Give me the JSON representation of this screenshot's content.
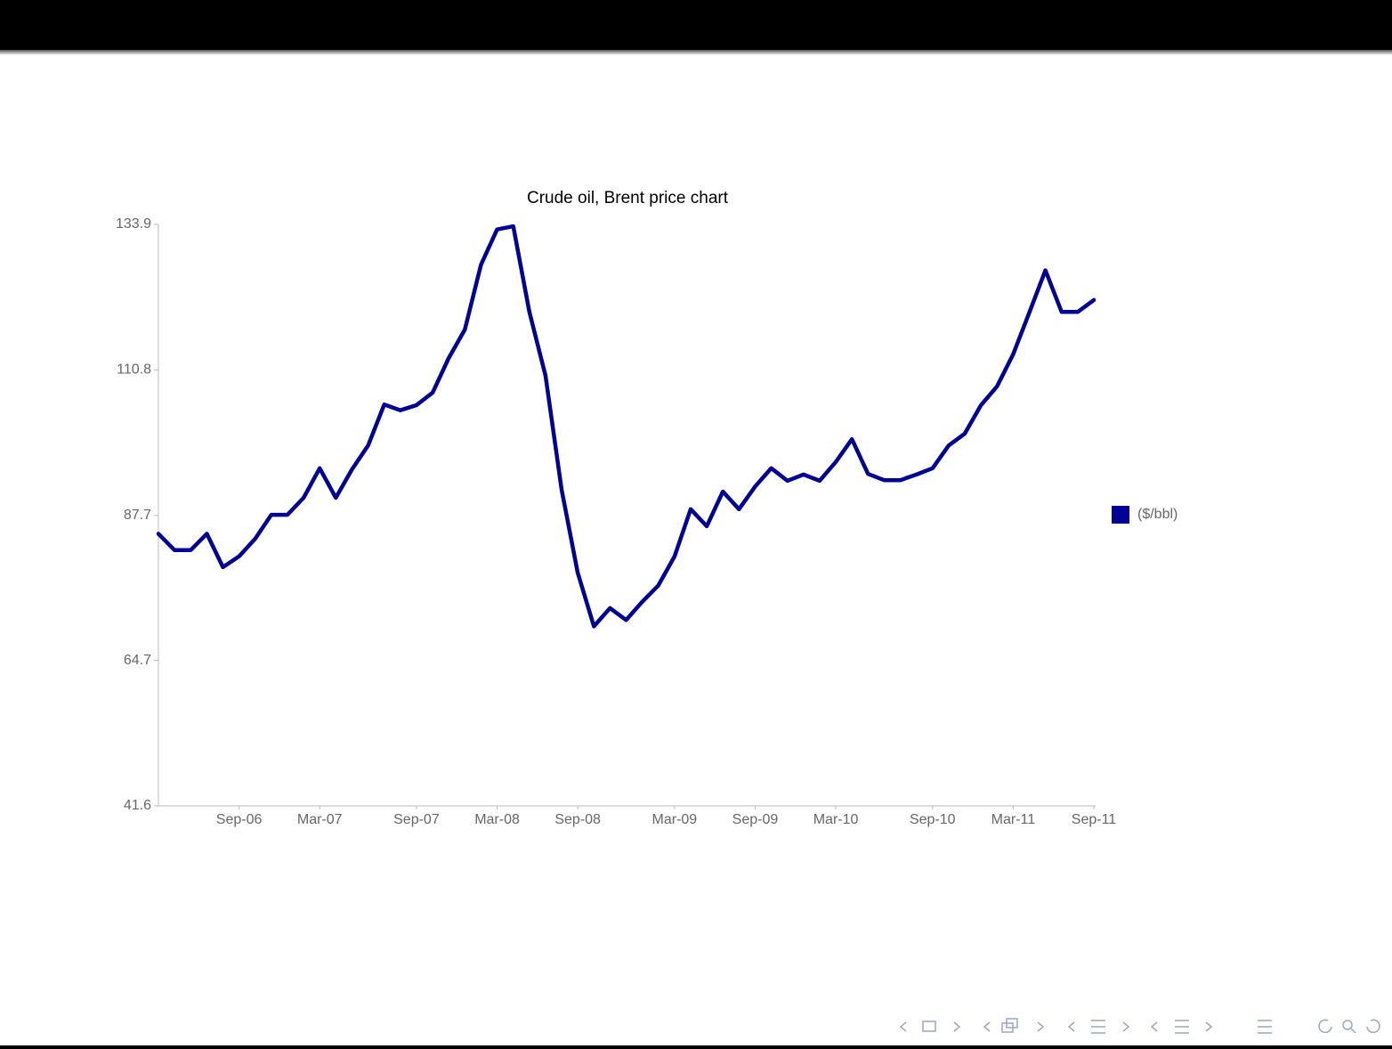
{
  "chart_data": {
    "type": "line",
    "title": "Crude oil, Brent price chart",
    "categories": [
      null,
      null,
      null,
      null,
      null,
      "Sep-06",
      null,
      null,
      null,
      null,
      "Mar-07",
      null,
      null,
      null,
      null,
      null,
      "Sep-07",
      null,
      null,
      null,
      null,
      "Mar-08",
      null,
      null,
      null,
      null,
      "Sep-08",
      null,
      null,
      null,
      null,
      null,
      "Mar-09",
      null,
      null,
      null,
      null,
      "Sep-09",
      null,
      null,
      null,
      null,
      "Mar-10",
      null,
      null,
      null,
      null,
      null,
      "Sep-10",
      null,
      null,
      null,
      null,
      "Mar-11",
      null,
      null,
      null,
      null,
      "Sep-11"
    ],
    "series": [
      {
        "name": "($/bbl)",
        "color": "#000099",
        "values": [
          84.8,
          82.2,
          82.2,
          84.8,
          79.5,
          81.2,
          84.0,
          87.8,
          87.8,
          90.5,
          95.2,
          90.5,
          95.0,
          98.8,
          105.3,
          104.4,
          105.2,
          107.2,
          112.7,
          117.2,
          127.5,
          133.1,
          133.6,
          120.0,
          109.9,
          91.8,
          78.6,
          70.1,
          73.0,
          71.1,
          74.0,
          76.6,
          81.2,
          88.7,
          86.0,
          91.5,
          88.7,
          92.3,
          95.2,
          93.2,
          94.2,
          93.2,
          96.2,
          99.8,
          94.3,
          93.3,
          93.3,
          94.2,
          95.2,
          98.8,
          100.7,
          105.2,
          108.2,
          113.3,
          119.9,
          126.6,
          120.0,
          120.0,
          121.9
        ]
      }
    ],
    "ylim": [
      41.6,
      133.9
    ],
    "yticks": [
      41.6,
      64.7,
      87.7,
      110.8,
      133.9
    ],
    "grid": false,
    "legend": "right"
  }
}
